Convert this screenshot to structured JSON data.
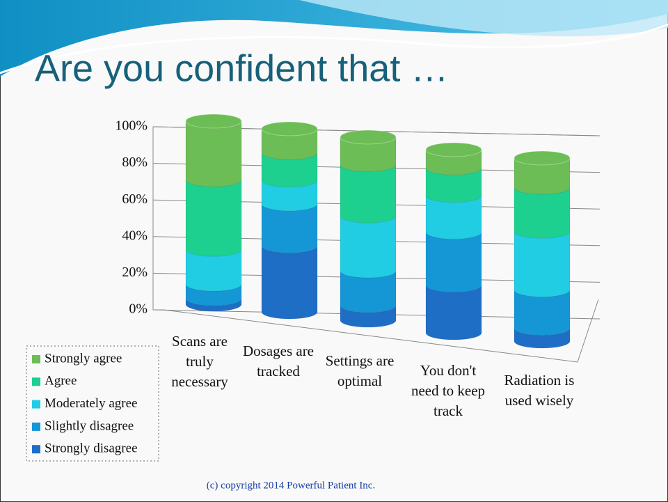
{
  "title": "Are you confident that …",
  "footer": "(c) copyright 2014 Powerful Patient Inc.",
  "chart_data": {
    "type": "bar3d",
    "categories": [
      "Scans are truly necessary",
      "Dosages are tracked",
      "Settings are optimal",
      "You don't need to keep track",
      "Radiation is used wisely"
    ],
    "series": [
      {
        "name": "Strongly disagree",
        "color": "#1f6ec6",
        "values": [
          3,
          36,
          8,
          26,
          7
        ]
      },
      {
        "name": "Slightly disagree",
        "color": "#1597d6",
        "values": [
          8,
          23,
          19,
          29,
          21
        ]
      },
      {
        "name": "Moderately agree",
        "color": "#21cde2",
        "values": [
          19,
          13,
          30,
          20,
          32
        ]
      },
      {
        "name": "Agree",
        "color": "#1dd08f",
        "values": [
          38,
          15,
          28,
          15,
          24
        ]
      },
      {
        "name": "Strongly agree",
        "color": "#6cbd55",
        "values": [
          32,
          13,
          15,
          10,
          16
        ]
      }
    ],
    "ylim": [
      0,
      100
    ],
    "yticks": [
      {
        "value": 0,
        "label": "0%"
      },
      {
        "value": 20,
        "label": "20%"
      },
      {
        "value": 40,
        "label": "40%"
      },
      {
        "value": 60,
        "label": "60%"
      },
      {
        "value": 80,
        "label": "80%"
      },
      {
        "value": 100,
        "label": "100%"
      }
    ],
    "grid": true
  }
}
